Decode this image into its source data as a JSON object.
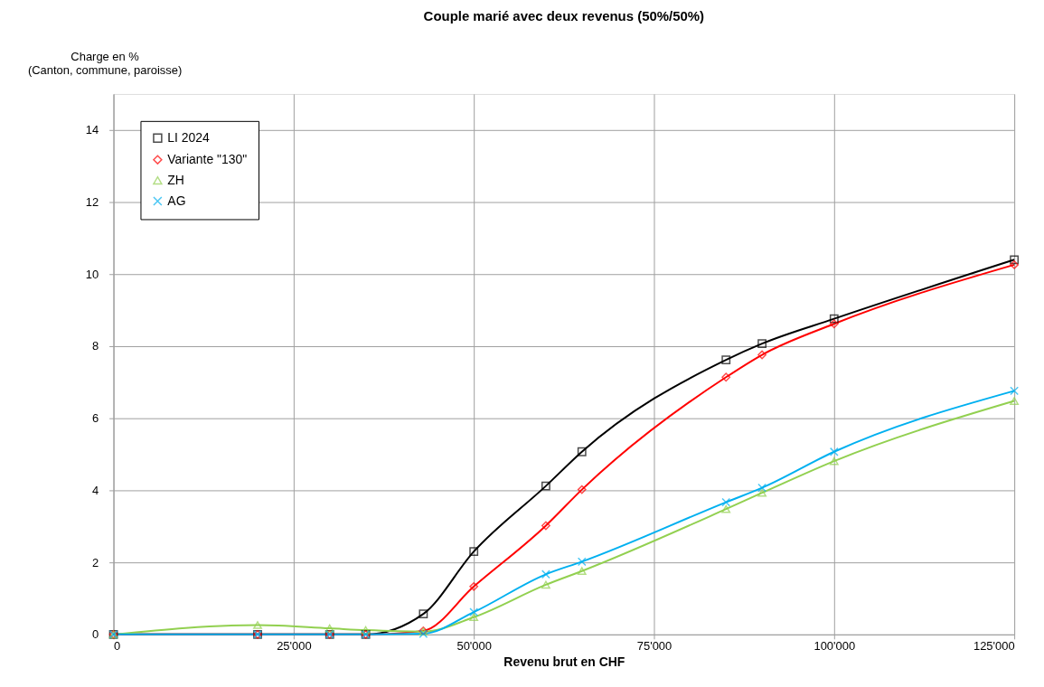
{
  "chart_data": {
    "type": "line",
    "title": "Couple marié avec deux revenus (50%/50%)",
    "xlabel": "Revenu brut en CHF",
    "ylabel": "Charge en %\n(Canton, commune, paroisse)",
    "x": [
      0,
      20000,
      30000,
      35000,
      43000,
      50000,
      60000,
      65000,
      85000,
      90000,
      100000,
      125000
    ],
    "series": [
      {
        "name": "LI 2024",
        "color": "#000000",
        "marker": "square",
        "values": [
          0,
          0,
          0,
          0,
          0.57,
          2.3,
          4.12,
          5.07,
          7.62,
          8.07,
          8.76,
          10.4
        ]
      },
      {
        "name": "Variante \"130\"",
        "color": "#ff0000",
        "marker": "diamond",
        "values": [
          0,
          0,
          0,
          0,
          0.1,
          1.33,
          3.02,
          4.02,
          7.14,
          7.76,
          8.62,
          10.26
        ]
      },
      {
        "name": "ZH",
        "color": "#92d050",
        "marker": "triangle",
        "values": [
          0,
          0.26,
          0.17,
          0.12,
          0.08,
          0.48,
          1.38,
          1.76,
          3.48,
          3.93,
          4.81,
          6.48
        ]
      },
      {
        "name": "AG",
        "color": "#00b0f0",
        "marker": "cross",
        "values": [
          0,
          0,
          0,
          0,
          0.02,
          0.62,
          1.67,
          2.02,
          3.67,
          4.07,
          5.07,
          6.76
        ]
      }
    ],
    "xlim": [
      0,
      125000
    ],
    "xticks": [
      0,
      {
        "value": 25000,
        "label": "25'000"
      },
      {
        "value": 50000,
        "label": "50'000"
      },
      {
        "value": 75000,
        "label": "75'000"
      },
      {
        "value": 100000,
        "label": "100'000"
      },
      {
        "value": 125000,
        "label": "125'000"
      }
    ],
    "ylim": [
      0,
      15
    ],
    "yticks": [
      0,
      2,
      4,
      6,
      8,
      10,
      12,
      14
    ],
    "grid": true,
    "legend": "top left",
    "line_style": "solid"
  }
}
